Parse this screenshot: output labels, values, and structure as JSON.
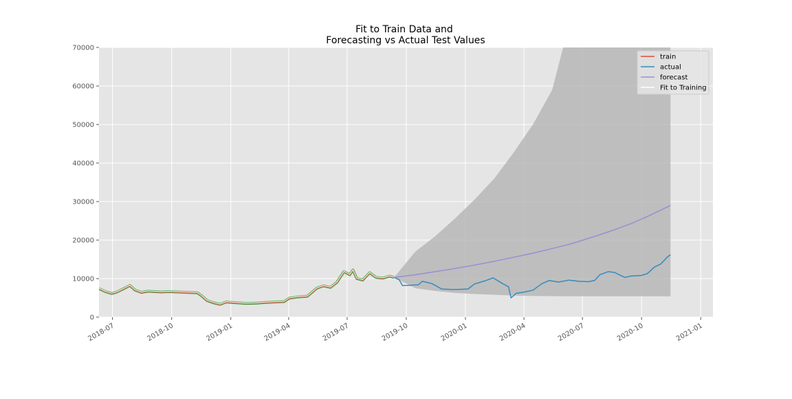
{
  "chart_data": {
    "type": "line",
    "title": "Fit to Train Data and\nForecasting vs Actual Test Values",
    "title_lines": [
      "Fit to Train Data and",
      "Forecasting vs Actual Test Values"
    ],
    "xlabel": "",
    "ylabel": "",
    "xlim": [
      "2018-06-10",
      "2021-01-20"
    ],
    "ylim": [
      0,
      70000
    ],
    "grid": true,
    "legend_position": "top-right",
    "x_ticks": [
      "2018-07",
      "2018-10",
      "2019-01",
      "2019-04",
      "2019-07",
      "2019-10",
      "2020-01",
      "2020-04",
      "2020-07",
      "2020-10",
      "2021-01"
    ],
    "y_ticks": [
      0,
      10000,
      20000,
      30000,
      40000,
      50000,
      60000,
      70000
    ],
    "legend": [
      "train",
      "actual",
      "forecast",
      "Fit to Training"
    ],
    "colors": {
      "train": "#e24a33",
      "actual": "#348abd",
      "forecast": "#988ed5",
      "fit": "#ffffff",
      "fit_shadow": "#5fa85f",
      "confidence": "#b0b0b0",
      "plot_bg": "#e5e5e5",
      "grid": "#ffffff"
    },
    "series": [
      {
        "name": "train",
        "x": [
          "2018-06-10",
          "2018-06-20",
          "2018-06-30",
          "2018-07-08",
          "2018-07-20",
          "2018-07-28",
          "2018-08-05",
          "2018-08-15",
          "2018-08-25",
          "2018-09-05",
          "2018-09-15",
          "2018-09-25",
          "2018-10-10",
          "2018-10-25",
          "2018-11-10",
          "2018-11-16",
          "2018-11-25",
          "2018-12-05",
          "2018-12-15",
          "2018-12-25",
          "2019-01-10",
          "2019-01-25",
          "2019-02-10",
          "2019-02-25",
          "2019-03-10",
          "2019-03-25",
          "2019-04-02",
          "2019-04-15",
          "2019-04-30",
          "2019-05-15",
          "2019-05-25",
          "2019-06-05",
          "2019-06-15",
          "2019-06-26",
          "2019-07-05",
          "2019-07-10",
          "2019-07-16",
          "2019-07-25",
          "2019-08-05",
          "2019-08-15",
          "2019-08-25",
          "2019-09-05",
          "2019-09-12"
        ],
        "y": [
          7400,
          6600,
          6100,
          6500,
          7500,
          8200,
          7000,
          6400,
          6700,
          6600,
          6500,
          6600,
          6500,
          6400,
          6300,
          5600,
          4300,
          3700,
          3300,
          3900,
          3700,
          3550,
          3600,
          3800,
          3900,
          4000,
          4900,
          5200,
          5400,
          7500,
          8100,
          7700,
          9000,
          11800,
          11000,
          12200,
          10000,
          9600,
          11500,
          10300,
          10100,
          10600,
          10300
        ]
      },
      {
        "name": "actual",
        "x": [
          "2019-09-12",
          "2019-09-20",
          "2019-09-25",
          "2019-10-10",
          "2019-10-20",
          "2019-10-26",
          "2019-11-10",
          "2019-11-25",
          "2019-12-10",
          "2019-12-20",
          "2020-01-05",
          "2020-01-15",
          "2020-01-31",
          "2020-02-13",
          "2020-02-28",
          "2020-03-08",
          "2020-03-12",
          "2020-03-20",
          "2020-04-01",
          "2020-04-15",
          "2020-04-29",
          "2020-05-10",
          "2020-05-25",
          "2020-06-10",
          "2020-06-25",
          "2020-07-10",
          "2020-07-20",
          "2020-07-28",
          "2020-08-10",
          "2020-08-20",
          "2020-09-05",
          "2020-09-15",
          "2020-09-30",
          "2020-10-10",
          "2020-10-21",
          "2020-10-31",
          "2020-11-10",
          "2020-11-15"
        ],
        "y": [
          10300,
          9700,
          8200,
          8300,
          8400,
          9300,
          8700,
          7300,
          7200,
          7200,
          7300,
          8600,
          9400,
          10200,
          8700,
          7900,
          5000,
          6200,
          6500,
          7000,
          8700,
          9500,
          9100,
          9600,
          9300,
          9200,
          9500,
          11000,
          11800,
          11600,
          10300,
          10700,
          10800,
          11300,
          13000,
          13800,
          15600,
          16200
        ]
      },
      {
        "name": "forecast",
        "x": [
          "2019-09-12",
          "2019-10-15",
          "2019-11-15",
          "2019-12-15",
          "2020-01-15",
          "2020-02-15",
          "2020-03-15",
          "2020-04-15",
          "2020-05-15",
          "2020-06-15",
          "2020-07-15",
          "2020-08-15",
          "2020-09-15",
          "2020-10-15",
          "2020-11-15"
        ],
        "y": [
          10300,
          11000,
          11800,
          12600,
          13500,
          14500,
          15500,
          16600,
          17800,
          19100,
          20700,
          22400,
          24300,
          26500,
          29000
        ]
      },
      {
        "name": "Fit to Training",
        "x": [
          "2018-06-10",
          "2018-06-20",
          "2018-06-30",
          "2018-07-08",
          "2018-07-20",
          "2018-07-28",
          "2018-08-05",
          "2018-08-15",
          "2018-08-25",
          "2018-09-05",
          "2018-09-15",
          "2018-09-25",
          "2018-10-10",
          "2018-10-25",
          "2018-11-10",
          "2018-11-16",
          "2018-11-25",
          "2018-12-05",
          "2018-12-15",
          "2018-12-25",
          "2019-01-10",
          "2019-01-25",
          "2019-02-10",
          "2019-02-25",
          "2019-03-10",
          "2019-03-25",
          "2019-04-02",
          "2019-04-15",
          "2019-04-30",
          "2019-05-15",
          "2019-05-25",
          "2019-06-05",
          "2019-06-15",
          "2019-06-26",
          "2019-07-05",
          "2019-07-10",
          "2019-07-16",
          "2019-07-25",
          "2019-08-05",
          "2019-08-15",
          "2019-08-25",
          "2019-09-05",
          "2019-09-12"
        ],
        "y": [
          7500,
          6700,
          6200,
          6600,
          7600,
          8300,
          7100,
          6500,
          6800,
          6700,
          6600,
          6700,
          6600,
          6500,
          6400,
          5700,
          4400,
          3800,
          3400,
          4000,
          3800,
          3650,
          3700,
          3900,
          4000,
          4100,
          5000,
          5300,
          5500,
          7600,
          8200,
          7800,
          9100,
          11900,
          11100,
          12300,
          10100,
          9700,
          11600,
          10400,
          10200,
          10700,
          10400
        ]
      }
    ],
    "confidence_interval": {
      "x": [
        "2019-09-12",
        "2019-10-15",
        "2019-11-15",
        "2019-12-15",
        "2020-01-15",
        "2020-02-15",
        "2020-03-15",
        "2020-04-15",
        "2020-05-15",
        "2020-06-01",
        "2020-07-15",
        "2020-08-15",
        "2020-09-15",
        "2020-10-15",
        "2020-11-15"
      ],
      "lower": [
        10300,
        7500,
        6800,
        6300,
        6000,
        5800,
        5600,
        5500,
        5450,
        5420,
        5400,
        5400,
        5400,
        5400,
        5400
      ],
      "upper": [
        10300,
        17000,
        21000,
        25500,
        30500,
        36000,
        42500,
        50000,
        59000,
        70000,
        85000,
        100000,
        120000,
        145000,
        170000
      ]
    }
  }
}
